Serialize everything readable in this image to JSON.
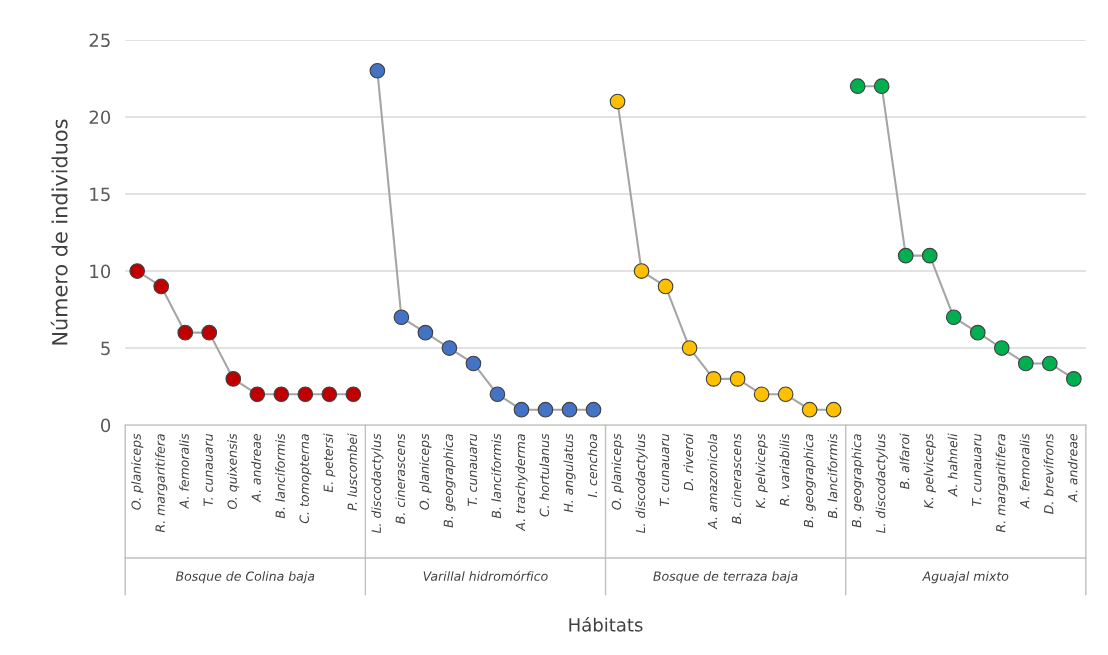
{
  "chart_data": {
    "type": "line",
    "xlabel": "Hábitats",
    "ylabel": "Número de individuos",
    "categories": [
      "O. planiceps",
      "R. margaritifera",
      "A. femoralis",
      "T. cunauaru",
      "O. quixensis",
      "A. andreae",
      "B. lanciformis",
      "C. tomopterna",
      "E. petersi",
      "P. luscombei",
      "L. discodactylus",
      "B. cinerascens",
      "O. planiceps",
      "B. geographica",
      "T. cunauaru",
      "B. lanciformis",
      "A. trachyderma",
      "C. hortulanus",
      "H. angulatus",
      "I. cenchoa",
      "O. planiceps",
      "L. discodactylus",
      "T. cunauaru",
      "D. riveroi",
      "A. amazonicola",
      "B. cinerascens",
      "K. pelviceps",
      "R. variabilis",
      "B. geographica",
      "B. lanciformis",
      "B. geographica",
      "L. discodactylus",
      "B. alfaroi",
      "K. pelviceps",
      "A. hahneli",
      "T. cunauaru",
      "R. margaritifera",
      "A. femoralis",
      "D. brevifrons",
      "A. andreae"
    ],
    "series": [
      {
        "color": "#c00000",
        "values": [
          10,
          9,
          6,
          6,
          3,
          2,
          2,
          2,
          2,
          2,
          null,
          null,
          null,
          null,
          null,
          null,
          null,
          null,
          null,
          null,
          null,
          null,
          null,
          null,
          null,
          null,
          null,
          null,
          null,
          null,
          null,
          null,
          null,
          null,
          null,
          null,
          null,
          null,
          null,
          null
        ]
      },
      {
        "color": "#4472c4",
        "values": [
          null,
          null,
          null,
          null,
          null,
          null,
          null,
          null,
          null,
          null,
          23,
          7,
          6,
          5,
          4,
          2,
          1,
          1,
          1,
          1,
          null,
          null,
          null,
          null,
          null,
          null,
          null,
          null,
          null,
          null,
          null,
          null,
          null,
          null,
          null,
          null,
          null,
          null,
          null,
          null
        ]
      },
      {
        "color": "#ffc000",
        "values": [
          null,
          null,
          null,
          null,
          null,
          null,
          null,
          null,
          null,
          null,
          null,
          null,
          null,
          null,
          null,
          null,
          null,
          null,
          null,
          null,
          21,
          10,
          9,
          5,
          3,
          3,
          2,
          2,
          1,
          1,
          null,
          null,
          null,
          null,
          null,
          null,
          null,
          null,
          null,
          null
        ]
      },
      {
        "color": "#00b050",
        "values": [
          null,
          null,
          null,
          null,
          null,
          null,
          null,
          null,
          null,
          null,
          null,
          null,
          null,
          null,
          null,
          null,
          null,
          null,
          null,
          null,
          null,
          null,
          null,
          null,
          null,
          null,
          null,
          null,
          null,
          null,
          22,
          22,
          11,
          11,
          7,
          6,
          5,
          4,
          4,
          3
        ]
      }
    ],
    "annotations": [
      "Bosque de Colina baja",
      "Varillal hidromórfico",
      "Bosque de terraza baja",
      "Aguajal mixto"
    ],
    "ylim": [
      0,
      25
    ],
    "yticks": [
      0,
      5,
      10,
      15,
      20,
      25
    ],
    "grid": "y",
    "marker": "circle",
    "line_style": "solid",
    "legend": false
  }
}
